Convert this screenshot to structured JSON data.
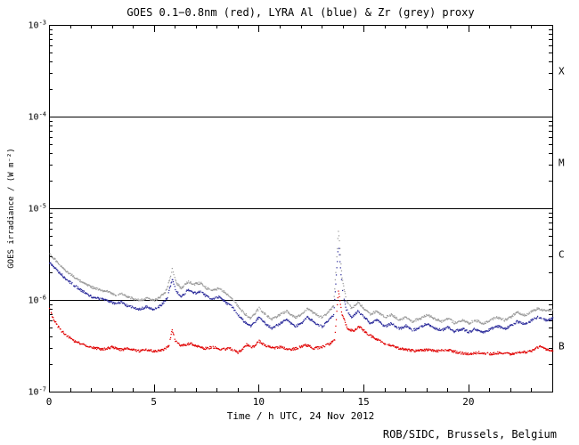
{
  "chart_data": {
    "type": "scatter",
    "title": "GOES 0.1−0.8nm (red), LYRA Al (blue) & Zr (grey) proxy",
    "xlabel": "Time / h UTC, 24 Nov 2012",
    "ylabel": "GOES irradiance / (W m⁻²)",
    "footer": "ROB/SIDC, Brussels, Belgium",
    "x_range": [
      0,
      24
    ],
    "y_log_range": [
      -7,
      -3
    ],
    "grid": false,
    "legend": "in title (colors)",
    "x_ticks": [
      {
        "label": "0",
        "h": 0
      },
      {
        "label": "5",
        "h": 5
      },
      {
        "label": "10",
        "h": 10
      },
      {
        "label": "15",
        "h": 15
      },
      {
        "label": "20",
        "h": 20
      }
    ],
    "y_ticks": [
      {
        "base": "10",
        "exp": "-3"
      },
      {
        "base": "10",
        "exp": "-4"
      },
      {
        "base": "10",
        "exp": "-5"
      },
      {
        "base": "10",
        "exp": "-6"
      },
      {
        "base": "10",
        "exp": "-7"
      }
    ],
    "class_lines": [
      0.0001,
      1e-05,
      1e-06
    ],
    "class_labels": [
      {
        "label": "X",
        "log_mid": -3.5
      },
      {
        "label": "M",
        "log_mid": -4.5
      },
      {
        "label": "C",
        "log_mid": -5.5
      },
      {
        "label": "B",
        "log_mid": -6.5
      }
    ],
    "series": [
      {
        "name": "LYRA Zr proxy",
        "color": "#9b9b9b",
        "points": [
          [
            0,
            3.2e-06
          ],
          [
            0.4,
            2.6e-06
          ],
          [
            0.8,
            2.1e-06
          ],
          [
            1.2,
            1.8e-06
          ],
          [
            1.6,
            1.55e-06
          ],
          [
            2.0,
            1.4e-06
          ],
          [
            2.4,
            1.3e-06
          ],
          [
            2.8,
            1.25e-06
          ],
          [
            3.1,
            1.15e-06
          ],
          [
            3.4,
            1.2e-06
          ],
          [
            3.7,
            1.1e-06
          ],
          [
            4.0,
            1.05e-06
          ],
          [
            4.3,
            1e-06
          ],
          [
            4.6,
            1.06e-06
          ],
          [
            5.0,
            1e-06
          ],
          [
            5.3,
            1.1e-06
          ],
          [
            5.6,
            1.3e-06
          ],
          [
            5.85,
            2.2e-06
          ],
          [
            6.05,
            1.55e-06
          ],
          [
            6.3,
            1.35e-06
          ],
          [
            6.6,
            1.6e-06
          ],
          [
            6.9,
            1.5e-06
          ],
          [
            7.2,
            1.55e-06
          ],
          [
            7.5,
            1.35e-06
          ],
          [
            7.8,
            1.3e-06
          ],
          [
            8.1,
            1.35e-06
          ],
          [
            8.4,
            1.2e-06
          ],
          [
            8.7,
            1.05e-06
          ],
          [
            9.0,
            8.6e-07
          ],
          [
            9.3,
            7.2e-07
          ],
          [
            9.6,
            6.4e-07
          ],
          [
            10.0,
            8.2e-07
          ],
          [
            10.3,
            7e-07
          ],
          [
            10.6,
            6.2e-07
          ],
          [
            11.0,
            7e-07
          ],
          [
            11.3,
            7.7e-07
          ],
          [
            11.7,
            6.5e-07
          ],
          [
            12.0,
            7e-07
          ],
          [
            12.3,
            8.2e-07
          ],
          [
            12.7,
            7e-07
          ],
          [
            13.0,
            6.5e-07
          ],
          [
            13.3,
            7.5e-07
          ],
          [
            13.55,
            8.7e-07
          ],
          [
            13.78,
            6e-06
          ],
          [
            13.95,
            1.8e-06
          ],
          [
            14.15,
            1e-06
          ],
          [
            14.4,
            8.2e-07
          ],
          [
            14.7,
            9.5e-07
          ],
          [
            15.0,
            8.2e-07
          ],
          [
            15.3,
            7e-07
          ],
          [
            15.6,
            7.7e-07
          ],
          [
            16.0,
            6.5e-07
          ],
          [
            16.3,
            7e-07
          ],
          [
            16.7,
            6.1e-07
          ],
          [
            17.0,
            6.6e-07
          ],
          [
            17.3,
            5.9e-07
          ],
          [
            17.7,
            6.4e-07
          ],
          [
            18.0,
            7e-07
          ],
          [
            18.3,
            6.4e-07
          ],
          [
            18.7,
            5.9e-07
          ],
          [
            19.0,
            6.4e-07
          ],
          [
            19.3,
            5.7e-07
          ],
          [
            19.7,
            6.1e-07
          ],
          [
            20.0,
            5.6e-07
          ],
          [
            20.3,
            6.1e-07
          ],
          [
            20.7,
            5.6e-07
          ],
          [
            21.0,
            6e-07
          ],
          [
            21.3,
            6.6e-07
          ],
          [
            21.7,
            6.1e-07
          ],
          [
            22.0,
            6.6e-07
          ],
          [
            22.3,
            7.4e-07
          ],
          [
            22.7,
            6.9e-07
          ],
          [
            23.0,
            7.6e-07
          ],
          [
            23.3,
            8.2e-07
          ],
          [
            23.7,
            7.6e-07
          ],
          [
            24,
            8e-07
          ]
        ]
      },
      {
        "name": "LYRA Al proxy",
        "color": "#2a2a9a",
        "points": [
          [
            0,
            2.6e-06
          ],
          [
            0.4,
            2.1e-06
          ],
          [
            0.8,
            1.7e-06
          ],
          [
            1.2,
            1.45e-06
          ],
          [
            1.6,
            1.25e-06
          ],
          [
            2.0,
            1.1e-06
          ],
          [
            2.4,
            1.05e-06
          ],
          [
            2.8,
            1e-06
          ],
          [
            3.1,
            9.2e-07
          ],
          [
            3.4,
            9.6e-07
          ],
          [
            3.7,
            8.8e-07
          ],
          [
            4.0,
            8.4e-07
          ],
          [
            4.3,
            8e-07
          ],
          [
            4.6,
            8.5e-07
          ],
          [
            5.0,
            8e-07
          ],
          [
            5.3,
            8.8e-07
          ],
          [
            5.6,
            1.05e-06
          ],
          [
            5.85,
            1.7e-06
          ],
          [
            6.05,
            1.25e-06
          ],
          [
            6.3,
            1.1e-06
          ],
          [
            6.6,
            1.3e-06
          ],
          [
            6.9,
            1.2e-06
          ],
          [
            7.2,
            1.25e-06
          ],
          [
            7.5,
            1.1e-06
          ],
          [
            7.8,
            1.05e-06
          ],
          [
            8.1,
            1.1e-06
          ],
          [
            8.4,
            9.5e-07
          ],
          [
            8.7,
            8.5e-07
          ],
          [
            9.0,
            7e-07
          ],
          [
            9.3,
            5.8e-07
          ],
          [
            9.6,
            5.2e-07
          ],
          [
            10.0,
            6.6e-07
          ],
          [
            10.3,
            5.6e-07
          ],
          [
            10.6,
            5e-07
          ],
          [
            11.0,
            5.6e-07
          ],
          [
            11.3,
            6.2e-07
          ],
          [
            11.7,
            5.2e-07
          ],
          [
            12.0,
            5.6e-07
          ],
          [
            12.3,
            6.6e-07
          ],
          [
            12.7,
            5.6e-07
          ],
          [
            13.0,
            5.2e-07
          ],
          [
            13.3,
            6e-07
          ],
          [
            13.55,
            7e-07
          ],
          [
            13.78,
            4.2e-06
          ],
          [
            13.95,
            1.4e-06
          ],
          [
            14.15,
            8e-07
          ],
          [
            14.4,
            6.6e-07
          ],
          [
            14.7,
            7.6e-07
          ],
          [
            15.0,
            6.6e-07
          ],
          [
            15.3,
            5.6e-07
          ],
          [
            15.6,
            6.2e-07
          ],
          [
            16.0,
            5.2e-07
          ],
          [
            16.3,
            5.6e-07
          ],
          [
            16.7,
            4.9e-07
          ],
          [
            17.0,
            5.3e-07
          ],
          [
            17.3,
            4.7e-07
          ],
          [
            17.7,
            5.1e-07
          ],
          [
            18.0,
            5.6e-07
          ],
          [
            18.3,
            5.1e-07
          ],
          [
            18.7,
            4.7e-07
          ],
          [
            19.0,
            5.1e-07
          ],
          [
            19.3,
            4.6e-07
          ],
          [
            19.7,
            4.9e-07
          ],
          [
            20.0,
            4.5e-07
          ],
          [
            20.3,
            4.9e-07
          ],
          [
            20.7,
            4.5e-07
          ],
          [
            21.0,
            4.8e-07
          ],
          [
            21.3,
            5.3e-07
          ],
          [
            21.7,
            4.9e-07
          ],
          [
            22.0,
            5.3e-07
          ],
          [
            22.3,
            5.9e-07
          ],
          [
            22.7,
            5.5e-07
          ],
          [
            23.0,
            6.1e-07
          ],
          [
            23.3,
            6.6e-07
          ],
          [
            23.7,
            6.1e-07
          ],
          [
            24,
            6.4e-07
          ]
        ]
      },
      {
        "name": "GOES 0.1−0.8nm",
        "color": "#e00000",
        "points": [
          [
            0,
            8e-07
          ],
          [
            0.2,
            6.2e-07
          ],
          [
            0.5,
            4.8e-07
          ],
          [
            0.8,
            4.2e-07
          ],
          [
            1.2,
            3.6e-07
          ],
          [
            1.6,
            3.3e-07
          ],
          [
            2.0,
            3.1e-07
          ],
          [
            2.5,
            2.9e-07
          ],
          [
            3.0,
            3.1e-07
          ],
          [
            3.4,
            2.9e-07
          ],
          [
            3.8,
            3e-07
          ],
          [
            4.2,
            2.8e-07
          ],
          [
            4.6,
            2.9e-07
          ],
          [
            5.0,
            2.8e-07
          ],
          [
            5.4,
            2.9e-07
          ],
          [
            5.7,
            3.2e-07
          ],
          [
            5.85,
            4.8e-07
          ],
          [
            6.0,
            3.6e-07
          ],
          [
            6.3,
            3.2e-07
          ],
          [
            6.7,
            3.4e-07
          ],
          [
            7.0,
            3.2e-07
          ],
          [
            7.4,
            3e-07
          ],
          [
            7.8,
            3.1e-07
          ],
          [
            8.2,
            2.9e-07
          ],
          [
            8.6,
            3e-07
          ],
          [
            9.0,
            2.7e-07
          ],
          [
            9.4,
            3.3e-07
          ],
          [
            9.7,
            3.1e-07
          ],
          [
            10.0,
            3.6e-07
          ],
          [
            10.3,
            3.2e-07
          ],
          [
            10.7,
            3e-07
          ],
          [
            11.0,
            3.1e-07
          ],
          [
            11.4,
            2.9e-07
          ],
          [
            11.8,
            3e-07
          ],
          [
            12.2,
            3.3e-07
          ],
          [
            12.6,
            3e-07
          ],
          [
            13.0,
            3.1e-07
          ],
          [
            13.4,
            3.4e-07
          ],
          [
            13.6,
            3.8e-07
          ],
          [
            13.78,
            1.3e-06
          ],
          [
            13.95,
            7e-07
          ],
          [
            14.2,
            5e-07
          ],
          [
            14.5,
            4.6e-07
          ],
          [
            14.8,
            5.2e-07
          ],
          [
            15.1,
            4.4e-07
          ],
          [
            15.5,
            3.9e-07
          ],
          [
            16.0,
            3.4e-07
          ],
          [
            16.5,
            3.1e-07
          ],
          [
            17.0,
            2.9e-07
          ],
          [
            17.5,
            2.8e-07
          ],
          [
            18.0,
            2.9e-07
          ],
          [
            18.5,
            2.8e-07
          ],
          [
            19.0,
            2.9e-07
          ],
          [
            19.5,
            2.7e-07
          ],
          [
            20.0,
            2.6e-07
          ],
          [
            20.5,
            2.7e-07
          ],
          [
            21.0,
            2.6e-07
          ],
          [
            21.5,
            2.7e-07
          ],
          [
            22.0,
            2.6e-07
          ],
          [
            22.5,
            2.7e-07
          ],
          [
            23.0,
            2.8e-07
          ],
          [
            23.4,
            3.2e-07
          ],
          [
            23.7,
            2.9e-07
          ],
          [
            24,
            2.8e-07
          ]
        ]
      }
    ]
  }
}
